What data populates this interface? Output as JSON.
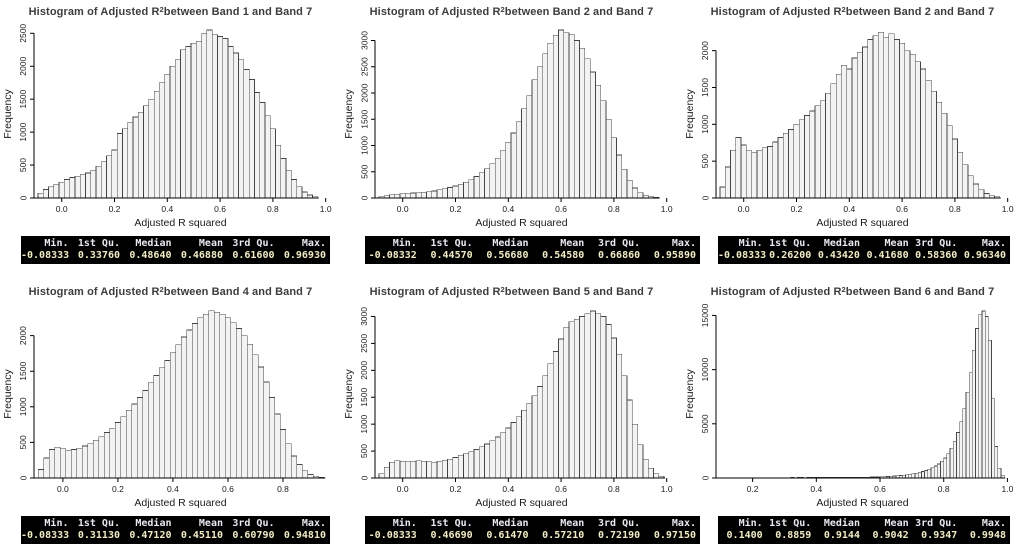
{
  "page": {
    "background": "#ffffff"
  },
  "colors": {
    "bar_fill": "#f3f3f3",
    "bar_stroke": "#454545",
    "axis": "#000000",
    "tick_label": "#1a1a1a",
    "title": "#3d3d3d",
    "table_bg": "#000000",
    "table_header_text": "#eae7f0",
    "table_value_text": "#f1ebc4"
  },
  "chart_data": [
    {
      "type": "bar",
      "title_prefix": "Histogram of Adjusted R",
      "title_sup": "2",
      "title_suffix": "between Band 1 and Band 7",
      "xlabel": "Adjusted R squared",
      "ylabel": "Frequency",
      "bin_start": -0.09,
      "bin_width": 0.02,
      "heights": [
        70,
        130,
        170,
        210,
        240,
        280,
        310,
        330,
        360,
        380,
        420,
        480,
        550,
        640,
        730,
        980,
        1050,
        1150,
        1230,
        1300,
        1400,
        1500,
        1620,
        1750,
        1880,
        2000,
        2100,
        2250,
        2300,
        2350,
        2380,
        2500,
        2550,
        2480,
        2450,
        2420,
        2300,
        2200,
        2100,
        1950,
        1800,
        1600,
        1450,
        1250,
        1050,
        800,
        600,
        420,
        280,
        170,
        90,
        45,
        20
      ],
      "xlim": [
        -0.105,
        1.005
      ],
      "yplot_max": 2550,
      "xtick_vals": [
        0,
        0.2,
        0.4,
        0.6,
        0.8,
        1.0
      ],
      "xtick_labels": [
        "0.0",
        "0.2",
        "0.4",
        "0.6",
        "0.8",
        "1.0"
      ],
      "ytick_vals": [
        0,
        500,
        1000,
        1500,
        2000,
        2500
      ],
      "ytick_labels": [
        "0",
        "500",
        "1000",
        "1500",
        "2000",
        "2500"
      ],
      "summary": {
        "headers": [
          "Min.",
          "1st Qu.",
          "Median",
          "Mean",
          "3rd Qu.",
          "Max."
        ],
        "values": [
          "-0.08333",
          "0.33760",
          "0.48640",
          "0.46880",
          "0.61600",
          "0.96930"
        ]
      }
    },
    {
      "type": "bar",
      "title_prefix": "Histogram of Adjusted R",
      "title_sup": "2",
      "title_suffix": "between Band 2 and Band 7",
      "xlabel": "Adjusted R squared",
      "ylabel": "Frequency",
      "bin_start": -0.09,
      "bin_width": 0.02,
      "heights": [
        25,
        45,
        60,
        70,
        80,
        90,
        95,
        100,
        110,
        120,
        135,
        155,
        175,
        200,
        230,
        260,
        300,
        350,
        410,
        480,
        560,
        650,
        760,
        900,
        1060,
        1240,
        1450,
        1700,
        1950,
        2250,
        2500,
        2750,
        2950,
        3100,
        3200,
        3150,
        3120,
        3000,
        2850,
        2650,
        2400,
        2150,
        1850,
        1500,
        1150,
        820,
        550,
        340,
        190,
        100,
        50,
        25,
        10
      ],
      "xlim": [
        -0.105,
        1.005
      ],
      "yplot_max": 3200,
      "xtick_vals": [
        0,
        0.2,
        0.4,
        0.6,
        0.8,
        1.0
      ],
      "xtick_labels": [
        "0.0",
        "0.2",
        "0.4",
        "0.6",
        "0.8",
        "1.0"
      ],
      "ytick_vals": [
        0,
        500,
        1000,
        1500,
        2000,
        2500,
        3000
      ],
      "ytick_labels": [
        "0",
        "500",
        "1000",
        "1500",
        "2000",
        "2500",
        "3000"
      ],
      "summary": {
        "headers": [
          "Min.",
          "1st Qu.",
          "Median",
          "Mean",
          "3rd Qu.",
          "Max."
        ],
        "values": [
          "-0.08332",
          "0.44570",
          "0.56680",
          "0.54580",
          "0.66860",
          "0.95890"
        ]
      }
    },
    {
      "type": "bar",
      "title_prefix": "Histogram of Adjusted R",
      "title_sup": "2",
      "title_suffix": "between Band 2 and Band 7",
      "xlabel": "Adjusted R squared",
      "ylabel": "Frequency",
      "bin_start": -0.09,
      "bin_width": 0.02,
      "heights": [
        150,
        420,
        650,
        820,
        720,
        640,
        620,
        650,
        680,
        700,
        760,
        820,
        880,
        930,
        1000,
        1060,
        1120,
        1180,
        1250,
        1320,
        1420,
        1550,
        1680,
        1800,
        1750,
        1900,
        1980,
        2050,
        2150,
        2200,
        2250,
        2180,
        2230,
        2150,
        2100,
        2000,
        1950,
        1850,
        1750,
        1600,
        1450,
        1300,
        1150,
        980,
        800,
        620,
        450,
        300,
        190,
        110,
        60,
        30,
        15
      ],
      "xlim": [
        -0.105,
        1.005
      ],
      "yplot_max": 2280,
      "xtick_vals": [
        0,
        0.2,
        0.4,
        0.6,
        0.8,
        1.0
      ],
      "xtick_labels": [
        "0.0",
        "0.2",
        "0.4",
        "0.6",
        "0.8",
        "1.0"
      ],
      "ytick_vals": [
        0,
        500,
        1000,
        1500,
        2000
      ],
      "ytick_labels": [
        "0",
        "500",
        "1000",
        "1500",
        "2000"
      ],
      "summary": {
        "headers": [
          "Min.",
          "1st Qu.",
          "Median",
          "Mean",
          "3rd Qu.",
          "Max."
        ],
        "values": [
          "-0.08333",
          "0.26200",
          "0.43420",
          "0.41680",
          "0.58360",
          "0.96340"
        ]
      }
    },
    {
      "type": "bar",
      "title_prefix": "Histogram of Adjusted R",
      "title_sup": "2",
      "title_suffix": "between Band 4 and Band 7",
      "xlabel": "Adjusted R squared",
      "ylabel": "Frequency",
      "bin_start": -0.09,
      "bin_width": 0.02,
      "heights": [
        120,
        280,
        400,
        430,
        410,
        390,
        400,
        420,
        450,
        480,
        530,
        580,
        640,
        700,
        780,
        860,
        950,
        1040,
        1130,
        1230,
        1340,
        1440,
        1550,
        1650,
        1760,
        1870,
        1980,
        2080,
        2170,
        2250,
        2300,
        2350,
        2330,
        2300,
        2250,
        2180,
        2100,
        2000,
        1880,
        1730,
        1560,
        1350,
        1130,
        900,
        680,
        480,
        310,
        190,
        100,
        50,
        25,
        10
      ],
      "xlim": [
        -0.105,
        0.96
      ],
      "yplot_max": 2360,
      "xtick_vals": [
        0,
        0.2,
        0.4,
        0.6,
        0.8
      ],
      "xtick_labels": [
        "0.0",
        "0.2",
        "0.4",
        "0.6",
        "0.8"
      ],
      "ytick_vals": [
        0,
        500,
        1000,
        1500,
        2000
      ],
      "ytick_labels": [
        "0",
        "500",
        "1000",
        "1500",
        "2000"
      ],
      "summary": {
        "headers": [
          "Min.",
          "1st Qu.",
          "Median",
          "Mean",
          "3rd Qu.",
          "Max."
        ],
        "values": [
          "-0.08333",
          "0.31130",
          "0.47120",
          "0.45110",
          "0.60790",
          "0.94810"
        ]
      }
    },
    {
      "type": "bar",
      "title_prefix": "Histogram of Adjusted R",
      "title_sup": "2",
      "title_suffix": "between Band 5 and Band 7",
      "xlabel": "Adjusted R squared",
      "ylabel": "Frequency",
      "bin_start": -0.09,
      "bin_width": 0.02,
      "heights": [
        80,
        200,
        290,
        320,
        310,
        300,
        310,
        320,
        310,
        300,
        295,
        310,
        330,
        350,
        380,
        420,
        450,
        490,
        530,
        580,
        630,
        690,
        760,
        840,
        930,
        1030,
        1140,
        1260,
        1390,
        1530,
        1700,
        1900,
        2120,
        2350,
        2580,
        2800,
        2900,
        2950,
        3000,
        3050,
        3100,
        3050,
        3000,
        2850,
        2600,
        2300,
        1900,
        1450,
        1000,
        620,
        350,
        180,
        80,
        30
      ],
      "xlim": [
        -0.105,
        1.005
      ],
      "yplot_max": 3120,
      "xtick_vals": [
        0,
        0.2,
        0.4,
        0.6,
        0.8,
        1.0
      ],
      "xtick_labels": [
        "0.0",
        "0.2",
        "0.4",
        "0.6",
        "0.8",
        "1.0"
      ],
      "ytick_vals": [
        0,
        500,
        1000,
        1500,
        2000,
        2500,
        3000
      ],
      "ytick_labels": [
        "0",
        "500",
        "1000",
        "1500",
        "2000",
        "2500",
        "3000"
      ],
      "summary": {
        "headers": [
          "Min.",
          "1st Qu.",
          "Median",
          "Mean",
          "3rd Qu.",
          "Max."
        ],
        "values": [
          "-0.08333",
          "0.46690",
          "0.61470",
          "0.57210",
          "0.72190",
          "0.97150"
        ]
      }
    },
    {
      "type": "bar",
      "title_prefix": "Histogram of Adjusted R",
      "title_sup": "2",
      "title_suffix": "between Band 6 and Band 7",
      "xlabel": "Adjusted R squared",
      "ylabel": "Frequency",
      "bin_start": 0.14,
      "bin_width": 0.01,
      "heights": [
        20,
        15,
        20,
        20,
        25,
        20,
        25,
        25,
        30,
        25,
        30,
        30,
        25,
        30,
        35,
        30,
        35,
        35,
        40,
        35,
        40,
        40,
        35,
        40,
        45,
        40,
        45,
        45,
        50,
        45,
        50,
        50,
        55,
        50,
        55,
        60,
        55,
        60,
        65,
        60,
        70,
        75,
        80,
        85,
        90,
        100,
        110,
        125,
        140,
        160,
        180,
        200,
        230,
        260,
        300,
        340,
        390,
        450,
        520,
        600,
        700,
        820,
        950,
        1100,
        1300,
        1550,
        1850,
        2250,
        2750,
        3400,
        4200,
        5200,
        6400,
        7900,
        9700,
        11800,
        13800,
        15100,
        15400,
        14900,
        12700,
        7300,
        2900,
        900,
        250
      ],
      "xlim": [
        0.085,
        1.005
      ],
      "yplot_max": 15500,
      "xtick_vals": [
        0.2,
        0.4,
        0.6,
        0.8,
        1.0
      ],
      "xtick_labels": [
        "0.2",
        "0.4",
        "0.6",
        "0.8",
        "1.0"
      ],
      "ytick_vals": [
        0,
        5000,
        10000,
        15000
      ],
      "ytick_labels": [
        "0",
        "5000",
        "10000",
        "15000"
      ],
      "summary": {
        "headers": [
          "Min.",
          "1st Qu.",
          "Median",
          "Mean",
          "3rd Qu.",
          "Max."
        ],
        "values": [
          "0.1400",
          "0.8859",
          "0.9144",
          "0.9042",
          "0.9347",
          "0.9948"
        ]
      }
    }
  ]
}
